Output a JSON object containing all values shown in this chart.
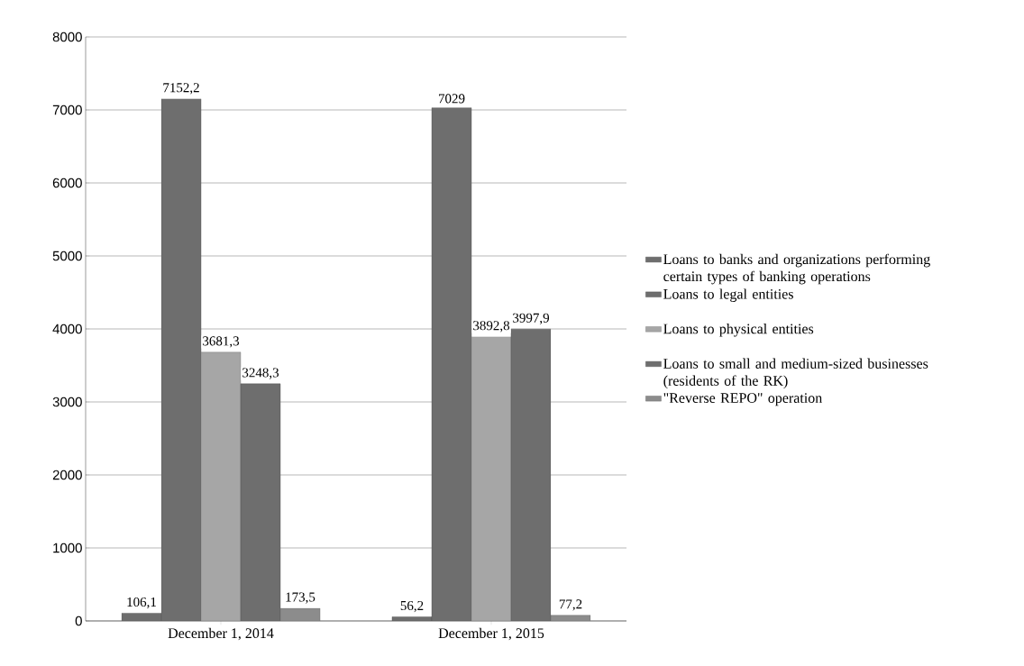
{
  "chart_data": {
    "type": "bar",
    "categories": [
      "December 1, 2014",
      "December 1, 2015"
    ],
    "series": [
      {
        "name": "Loans to banks and organizations performing certain types of banking operations",
        "color": "#6e6e6e",
        "values": [
          106.1,
          56.2
        ],
        "value_labels": [
          "106,1",
          "56,2"
        ]
      },
      {
        "name": "Loans to legal entities",
        "color": "#6e6e6e",
        "values": [
          7152.2,
          7029
        ],
        "value_labels": [
          "7152,2",
          "7029"
        ]
      },
      {
        "name": "Loans to physical entities",
        "color": "#a6a6a6",
        "values": [
          3681.3,
          3892.8
        ],
        "value_labels": [
          "3681,3",
          "3892,8"
        ]
      },
      {
        "name": "Loans to small and medium-sized businesses (residents of the RK)",
        "color": "#6e6e6e",
        "values": [
          3248.3,
          3997.9
        ],
        "value_labels": [
          "3248,3",
          "3997,9"
        ]
      },
      {
        "name": "\"Reverse REPO\" operation",
        "color": "#8c8c8c",
        "values": [
          173.5,
          77.2
        ],
        "value_labels": [
          "173,5",
          "77,2"
        ]
      }
    ],
    "ylim": [
      0,
      8000
    ],
    "yticks": [
      0,
      1000,
      2000,
      3000,
      4000,
      5000,
      6000,
      7000,
      8000
    ],
    "grid": "y",
    "legend": "right"
  }
}
